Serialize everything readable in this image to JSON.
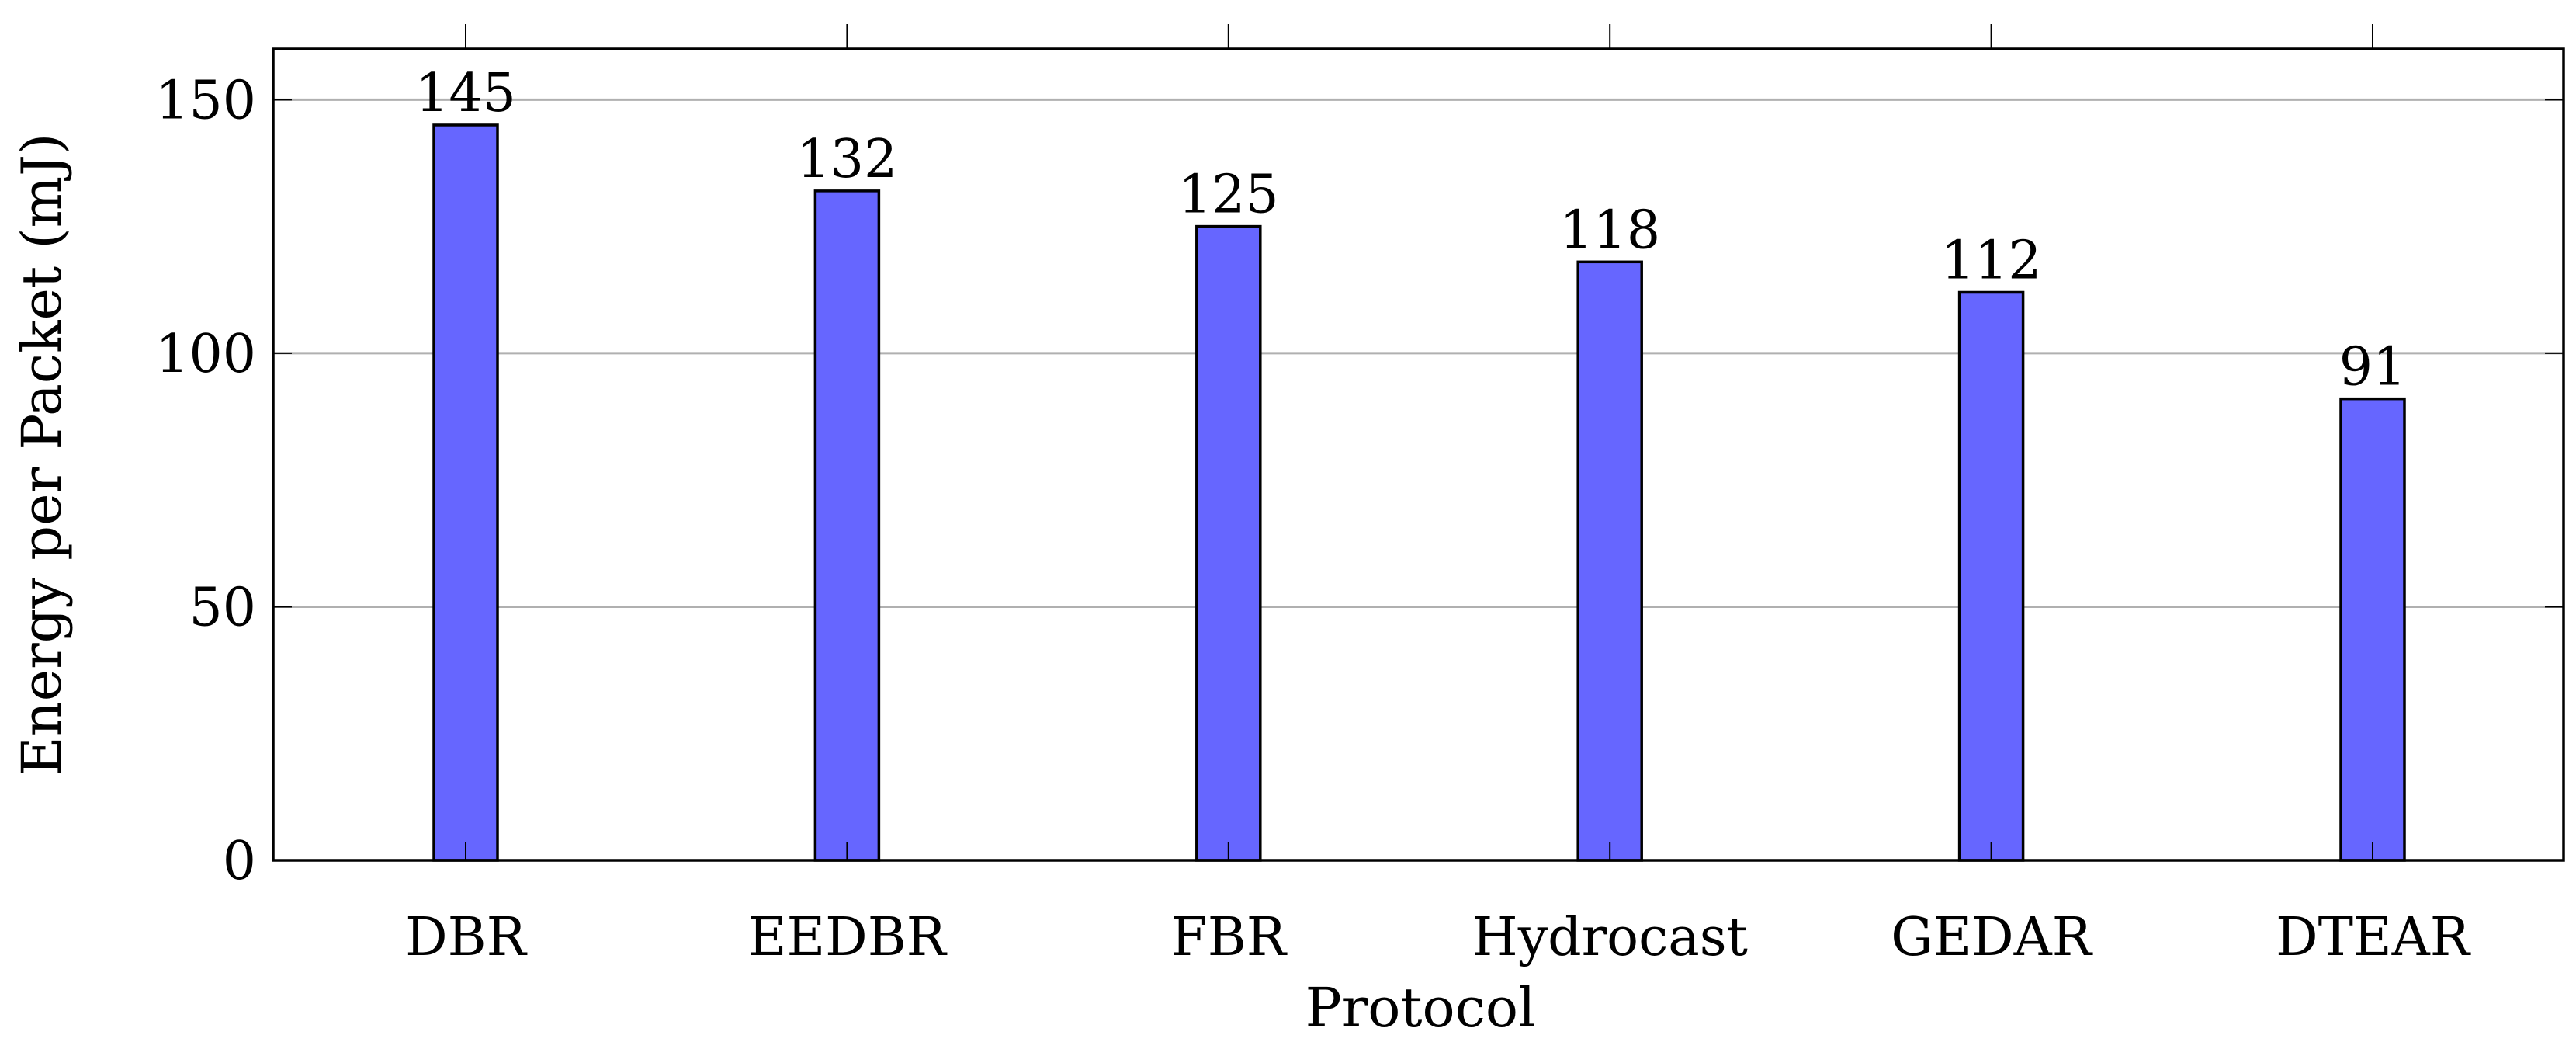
{
  "chart_data": {
    "type": "bar",
    "title": "",
    "xlabel": "Protocol",
    "ylabel": "Energy per Packet (mJ)",
    "categories": [
      "DBR",
      "EEDBR",
      "FBR",
      "Hydrocast",
      "GEDAR",
      "DTEAR"
    ],
    "values": [
      145,
      132,
      125,
      118,
      112,
      91
    ],
    "data_labels": [
      "145",
      "132",
      "125",
      "118",
      "112",
      "91"
    ],
    "ylim": [
      0,
      160
    ],
    "yticks": [
      0,
      50,
      100,
      150
    ],
    "ytick_labels": [
      "0",
      "50",
      "100",
      "150"
    ],
    "grid": "horizontal",
    "legend": "none",
    "colors": {
      "bar_fill": "#6666ff",
      "bar_stroke": "#000000",
      "grid": "#b0b0b0",
      "axis": "#000000"
    }
  }
}
